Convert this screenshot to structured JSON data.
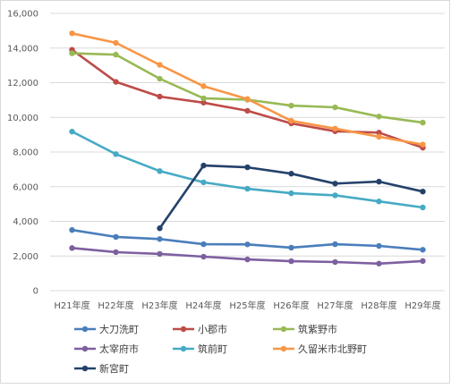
{
  "chart_data": {
    "type": "line",
    "title": "",
    "xlabel": "",
    "ylabel": "",
    "categories": [
      "H21年度",
      "H22年度",
      "H23年度",
      "H24年度",
      "H25年度",
      "H26年度",
      "H27年度",
      "H28年度",
      "H29年度"
    ],
    "ylim": [
      0,
      16000
    ],
    "ytick_values": [
      0,
      2000,
      4000,
      6000,
      8000,
      10000,
      12000,
      14000,
      16000
    ],
    "ytick_labels": [
      "0",
      "2,000",
      "4,000",
      "6,000",
      "8,000",
      "10,000",
      "12,000",
      "14,000",
      "16,000"
    ],
    "grid": true,
    "legend_position": "bottom",
    "series": [
      {
        "name": "大刀洗町",
        "color": "#4a7ebb",
        "values": [
          3500,
          3100,
          2980,
          2680,
          2670,
          2480,
          2680,
          2580,
          2360
        ]
      },
      {
        "name": "小郡市",
        "color": "#be4b48",
        "values": [
          13900,
          12050,
          11200,
          10850,
          10380,
          9650,
          9200,
          9120,
          8250
        ]
      },
      {
        "name": "筑紫野市",
        "color": "#98b954",
        "values": [
          13700,
          13620,
          12230,
          11100,
          11020,
          10680,
          10580,
          10050,
          9700
        ]
      },
      {
        "name": "太宰府市",
        "color": "#7d60a0",
        "values": [
          2460,
          2220,
          2120,
          1960,
          1800,
          1700,
          1650,
          1560,
          1710
        ]
      },
      {
        "name": "筑前町",
        "color": "#46aac5",
        "values": [
          9180,
          7880,
          6900,
          6250,
          5880,
          5620,
          5500,
          5150,
          4800
        ]
      },
      {
        "name": "久留米市北野町",
        "color": "#f79646",
        "values": [
          14850,
          14300,
          13030,
          11800,
          11060,
          9800,
          9350,
          8880,
          8430
        ]
      },
      {
        "name": "新宮町",
        "color": "#24416b",
        "values": [
          null,
          null,
          3600,
          7220,
          7120,
          6750,
          6180,
          6290,
          5720
        ]
      }
    ]
  }
}
